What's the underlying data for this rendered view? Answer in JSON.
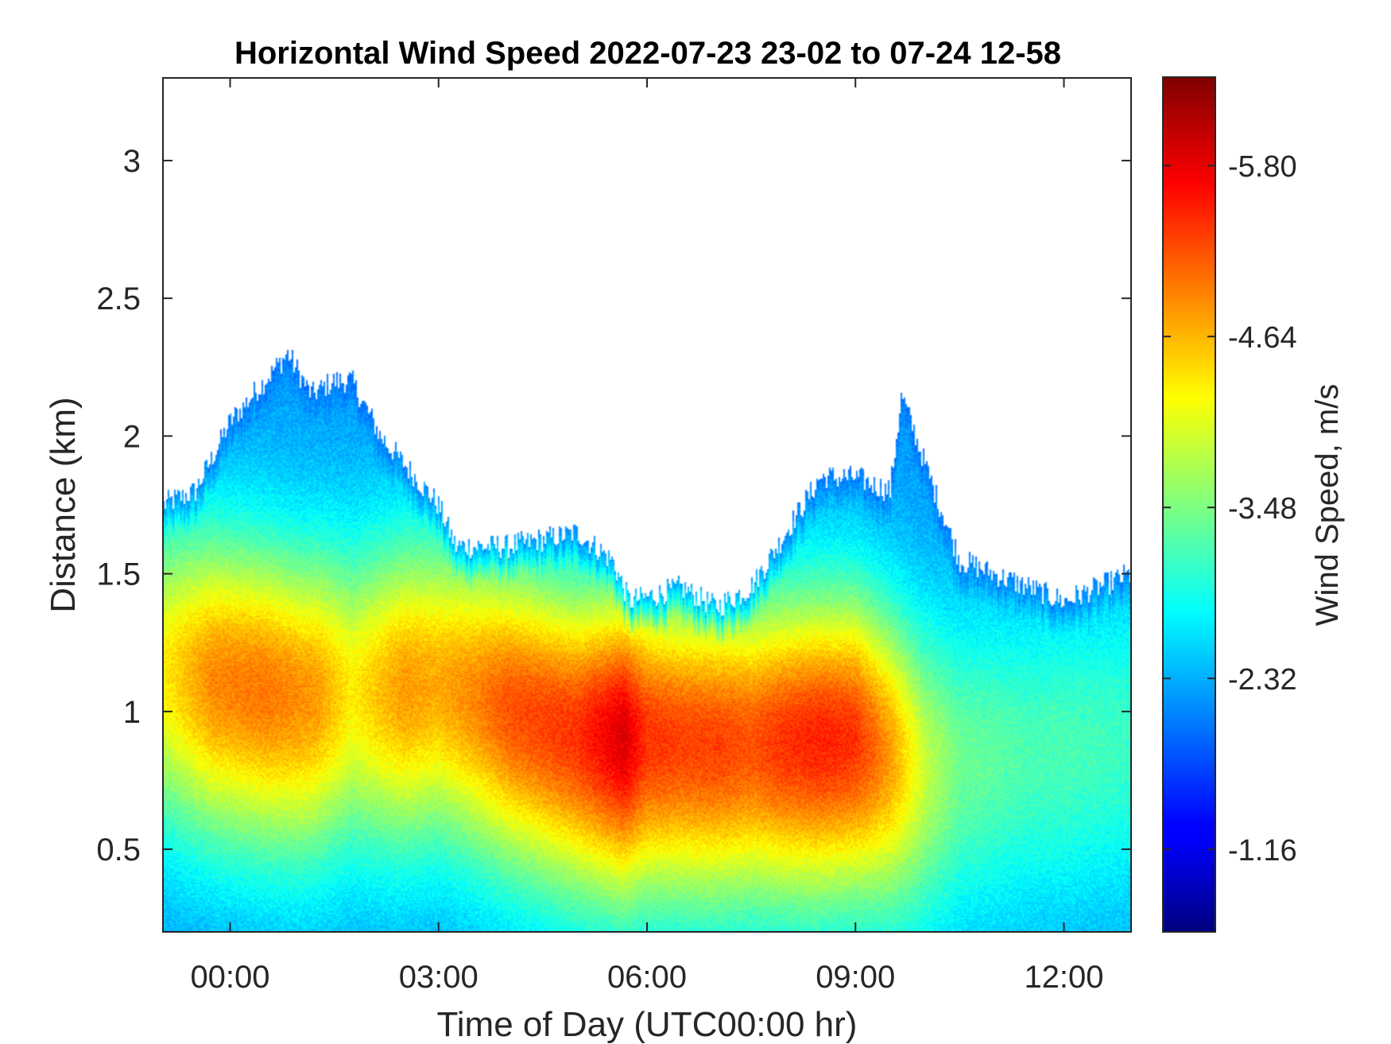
{
  "chart_data": {
    "type": "heatmap",
    "title": "Horizontal Wind Speed 2022-07-23 23-02 to 07-24 12-58",
    "xlabel": "Time of Day (UTC00:00 hr)",
    "ylabel": "Distance (km)",
    "x_range": [
      "2022-07-23 23:02",
      "2022-07-24 12:58"
    ],
    "x_tick_values": [
      "2022-07-24 00:00",
      "2022-07-24 03:00",
      "2022-07-24 06:00",
      "2022-07-24 09:00",
      "2022-07-24 12:00"
    ],
    "x_tick_labels": [
      "00:00",
      "03:00",
      "06:00",
      "09:00",
      "12:00"
    ],
    "ylim": [
      0.2,
      3.3
    ],
    "y_ticks": [
      0.5,
      1,
      1.5,
      2,
      2.5,
      3
    ],
    "y_tick_labels": [
      "0.5",
      "1",
      "1.5",
      "2",
      "2.5",
      "3"
    ],
    "colorbar": {
      "label": "Wind Speed, m/s",
      "colormap": "jet",
      "range": [
        -0.6,
        -6.4
      ],
      "tick_values": [
        -1.16,
        -2.32,
        -3.48,
        -4.64,
        -5.8
      ],
      "tick_labels": [
        "-1.16",
        "-2.32",
        "-3.48",
        "-4.64",
        "-5.80"
      ]
    },
    "data_top_height_km": {
      "times": [
        "2022-07-23 23:02",
        "2022-07-23 23:30",
        "2022-07-24 00:00",
        "2022-07-24 00:30",
        "2022-07-24 00:50",
        "2022-07-24 01:10",
        "2022-07-24 01:30",
        "2022-07-24 01:45",
        "2022-07-24 02:10",
        "2022-07-24 02:30",
        "2022-07-24 03:00",
        "2022-07-24 03:15",
        "2022-07-24 04:00",
        "2022-07-24 05:00",
        "2022-07-24 05:30",
        "2022-07-24 05:45",
        "2022-07-24 06:30",
        "2022-07-24 07:00",
        "2022-07-24 07:30",
        "2022-07-24 08:00",
        "2022-07-24 08:30",
        "2022-07-24 09:00",
        "2022-07-24 09:30",
        "2022-07-24 09:40",
        "2022-07-24 10:00",
        "2022-07-24 10:30",
        "2022-07-24 11:00",
        "2022-07-24 11:30",
        "2022-07-24 12:00",
        "2022-07-24 12:58"
      ],
      "values": [
        1.75,
        1.8,
        2.05,
        2.2,
        2.3,
        2.15,
        2.2,
        2.2,
        2.0,
        1.9,
        1.75,
        1.6,
        1.6,
        1.65,
        1.55,
        1.4,
        1.45,
        1.38,
        1.45,
        1.65,
        1.85,
        1.85,
        1.8,
        2.15,
        1.9,
        1.55,
        1.5,
        1.45,
        1.4,
        1.5
      ]
    },
    "core_max_speed_m_s": {
      "times": [
        "2022-07-23 23:02",
        "2022-07-23 23:45",
        "2022-07-24 00:30",
        "2022-07-24 01:15",
        "2022-07-24 01:45",
        "2022-07-24 02:30",
        "2022-07-24 03:00",
        "2022-07-24 03:30",
        "2022-07-24 04:00",
        "2022-07-24 04:30",
        "2022-07-24 05:00",
        "2022-07-24 05:40",
        "2022-07-24 06:00",
        "2022-07-24 06:30",
        "2022-07-24 07:00",
        "2022-07-24 07:30",
        "2022-07-24 08:00",
        "2022-07-24 08:30",
        "2022-07-24 09:00",
        "2022-07-24 09:30",
        "2022-07-24 10:00",
        "2022-07-24 10:30",
        "2022-07-24 11:00",
        "2022-07-24 11:30",
        "2022-07-24 12:00",
        "2022-07-24 12:58"
      ],
      "values": [
        -4.3,
        -4.9,
        -5.0,
        -4.8,
        -4.3,
        -4.8,
        -4.7,
        -4.9,
        -5.2,
        -5.3,
        -5.4,
        -5.9,
        -5.4,
        -5.3,
        -5.3,
        -5.2,
        -5.4,
        -5.5,
        -5.4,
        -4.8,
        -3.9,
        -3.4,
        -3.3,
        -3.2,
        -3.2,
        -3.1
      ]
    },
    "core_height_km": {
      "times": [
        "2022-07-23 23:02",
        "2022-07-24 01:00",
        "2022-07-24 03:00",
        "2022-07-24 05:00",
        "2022-07-24 07:00",
        "2022-07-24 09:00",
        "2022-07-24 10:00",
        "2022-07-24 12:58"
      ],
      "values": [
        1.15,
        1.05,
        1.1,
        0.92,
        0.88,
        0.9,
        0.8,
        0.9
      ]
    }
  }
}
